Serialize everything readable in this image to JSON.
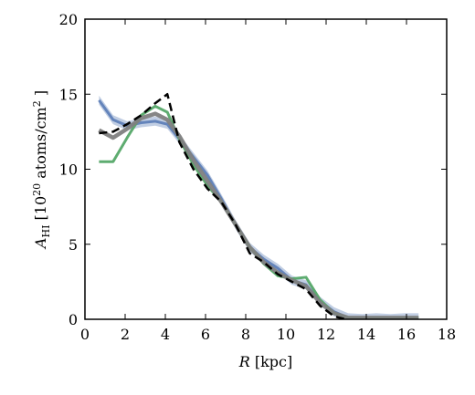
{
  "chart_data": {
    "type": "line",
    "xlabel": {
      "italic": "R",
      "rest": " [kpc]"
    },
    "ylabel": {
      "symbol": "A",
      "subscript": "HI",
      "open": " [10",
      "exponent": "20",
      "middle": " atoms/cm",
      "exponent2": "2",
      "close": " ]"
    },
    "xlim": [
      0,
      18
    ],
    "ylim": [
      0,
      20
    ],
    "xticks": [
      0,
      2,
      4,
      6,
      8,
      10,
      12,
      14,
      16,
      18
    ],
    "yticks": [
      0,
      5,
      10,
      15,
      20
    ],
    "grid": false,
    "series": [
      {
        "color": "#4c72b0",
        "style": "band",
        "band_width": 0.6,
        "x": [
          0.7,
          1.4,
          2.1,
          2.8,
          3.5,
          4.1,
          4.7,
          5.4,
          6.1,
          6.8,
          7.5,
          8.2,
          8.9,
          9.6,
          10.3,
          11.0,
          11.7,
          12.4,
          13.1,
          13.8,
          14.5,
          15.2,
          15.9,
          16.6
        ],
        "y": [
          14.6,
          13.3,
          12.9,
          13.1,
          13.2,
          13.0,
          12.0,
          10.8,
          9.6,
          8.0,
          6.3,
          4.8,
          4.0,
          3.4,
          2.6,
          2.3,
          1.2,
          0.5,
          0.1,
          0.05,
          0.1,
          0.05,
          0.1,
          0.1
        ]
      },
      {
        "color": "#55a868",
        "style": "solid",
        "x": [
          0.7,
          1.4,
          2.1,
          2.8,
          3.5,
          4.1,
          4.7,
          5.4,
          6.1,
          6.8,
          7.5,
          8.2,
          8.9,
          9.6,
          10.3,
          11.0,
          11.7,
          12.4,
          13.1,
          13.8,
          14.5,
          15.2,
          15.9,
          16.6
        ],
        "y": [
          10.5,
          10.5,
          12.1,
          13.6,
          14.2,
          13.8,
          12.0,
          10.3,
          8.9,
          7.8,
          6.3,
          4.8,
          3.7,
          2.9,
          2.7,
          2.8,
          1.3,
          0.4,
          0.1,
          0.05,
          0.1,
          0.05,
          0.1,
          0.1
        ]
      },
      {
        "color": "#808080",
        "style": "thick",
        "x": [
          0.7,
          1.4,
          2.1,
          2.8,
          3.5,
          4.1,
          4.7,
          5.4,
          6.1,
          6.8,
          7.5,
          8.2,
          8.9,
          9.6,
          10.3,
          11.0,
          11.7,
          12.4,
          13.1,
          13.8,
          14.5,
          15.2,
          15.9,
          16.6
        ],
        "y": [
          12.6,
          12.1,
          12.7,
          13.4,
          13.7,
          13.3,
          12.2,
          10.6,
          9.2,
          7.8,
          6.3,
          4.8,
          3.8,
          3.1,
          2.6,
          2.2,
          1.1,
          0.4,
          0.1,
          0.1,
          0.1,
          0.1,
          0.1,
          0.1
        ]
      },
      {
        "color": "#000000",
        "style": "dashed",
        "x": [
          0.7,
          1.4,
          2.1,
          2.8,
          3.5,
          4.1,
          4.7,
          5.4,
          6.1,
          6.8,
          7.5,
          8.2,
          8.9,
          9.6,
          10.3,
          11.0,
          11.7,
          12.4,
          13.1,
          13.8,
          14.5,
          15.2,
          15.9,
          16.6
        ],
        "y": [
          12.4,
          12.5,
          13.0,
          13.6,
          14.4,
          15.0,
          11.8,
          10.0,
          8.7,
          7.8,
          6.3,
          4.4,
          3.8,
          3.0,
          2.5,
          2.0,
          0.9,
          0.2,
          -0.05,
          -0.05,
          -0.05,
          -0.05,
          -0.05,
          -0.05
        ]
      }
    ]
  }
}
